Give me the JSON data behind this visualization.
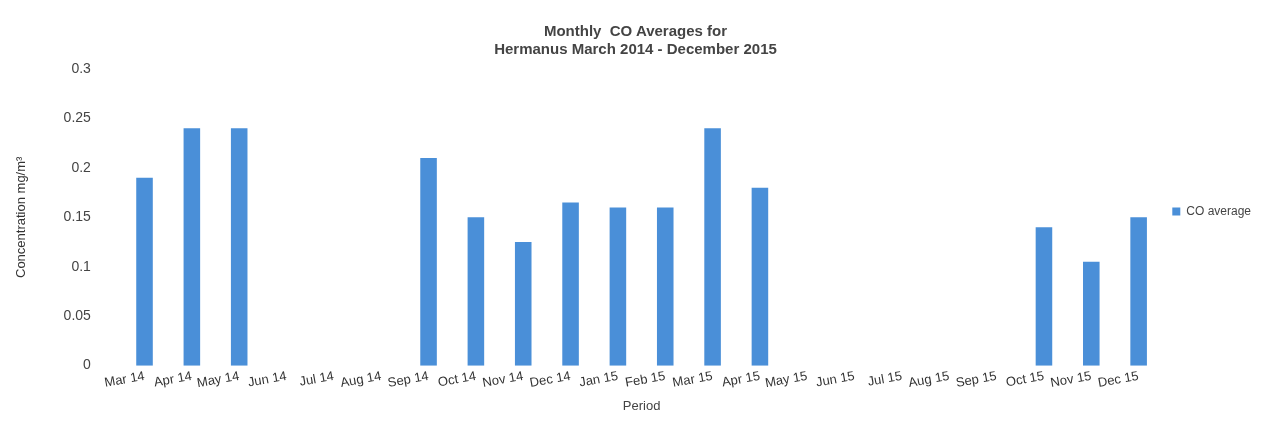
{
  "chart_data": {
    "type": "bar",
    "title": "Monthly  CO Averages for\nHermanus March 2014 - December 2015",
    "xlabel": "Period",
    "ylabel": "Concentration mg/m³",
    "categories": [
      "Mar 14",
      "Apr 14",
      "May 14",
      "Jun 14",
      "Jul 14",
      "Aug 14",
      "Sep 14",
      "Oct 14",
      "Nov 14",
      "Dec 14",
      "Jan 15",
      "Feb 15",
      "Mar 15",
      "Apr 15",
      "May 15",
      "Jun 15",
      "Jul 15",
      "Aug 15",
      "Sep 15",
      "Oct 15",
      "Nov 15",
      "Dec 15"
    ],
    "series": [
      {
        "name": "CO average",
        "color": "#4a8fd8",
        "values": [
          0.19,
          0.24,
          0.24,
          null,
          null,
          null,
          0.21,
          0.15,
          0.125,
          0.165,
          0.16,
          0.16,
          0.24,
          0.18,
          null,
          null,
          null,
          null,
          null,
          0.14,
          0.105,
          0.15
        ]
      }
    ],
    "ylim": [
      0,
      0.3
    ],
    "yticks": [
      0,
      0.05,
      0.1,
      0.15,
      0.2,
      0.25,
      0.3
    ],
    "grid": false,
    "legend": "right"
  }
}
